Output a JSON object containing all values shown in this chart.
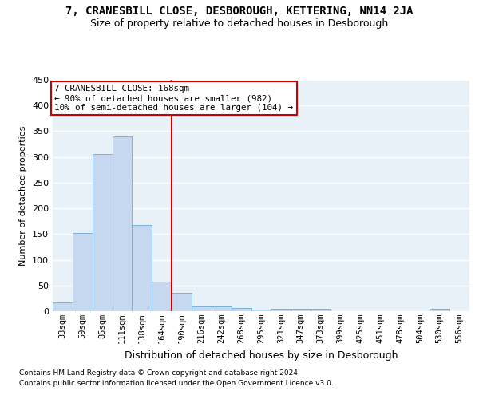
{
  "title": "7, CRANESBILL CLOSE, DESBOROUGH, KETTERING, NN14 2JA",
  "subtitle": "Size of property relative to detached houses in Desborough",
  "xlabel": "Distribution of detached houses by size in Desborough",
  "ylabel": "Number of detached properties",
  "footnote1": "Contains HM Land Registry data © Crown copyright and database right 2024.",
  "footnote2": "Contains public sector information licensed under the Open Government Licence v3.0.",
  "bar_labels": [
    "33sqm",
    "59sqm",
    "85sqm",
    "111sqm",
    "138sqm",
    "164sqm",
    "190sqm",
    "216sqm",
    "242sqm",
    "268sqm",
    "295sqm",
    "321sqm",
    "347sqm",
    "373sqm",
    "399sqm",
    "425sqm",
    "451sqm",
    "478sqm",
    "504sqm",
    "530sqm",
    "556sqm"
  ],
  "bar_values": [
    17,
    152,
    305,
    340,
    167,
    57,
    35,
    10,
    9,
    6,
    3,
    5,
    5,
    5,
    0,
    0,
    0,
    0,
    0,
    5,
    0
  ],
  "bar_color": "#c5d8f0",
  "bar_edge_color": "#6aaad4",
  "vline_color": "#cc0000",
  "vline_bar_index": 5,
  "annotation_title": "7 CRANESBILL CLOSE: 168sqm",
  "annotation_line1": "← 90% of detached houses are smaller (982)",
  "annotation_line2": "10% of semi-detached houses are larger (104) →",
  "annotation_box_facecolor": "#ffffff",
  "annotation_box_edgecolor": "#cc0000",
  "ylim": [
    0,
    450
  ],
  "yticks": [
    0,
    50,
    100,
    150,
    200,
    250,
    300,
    350,
    400,
    450
  ],
  "bg_color": "#e8f0f8",
  "grid_color": "#ffffff",
  "title_fontsize": 10,
  "subtitle_fontsize": 9,
  "ylabel_fontsize": 8,
  "xlabel_fontsize": 9,
  "tick_fontsize": 7.5,
  "footnote_fontsize": 6.5
}
